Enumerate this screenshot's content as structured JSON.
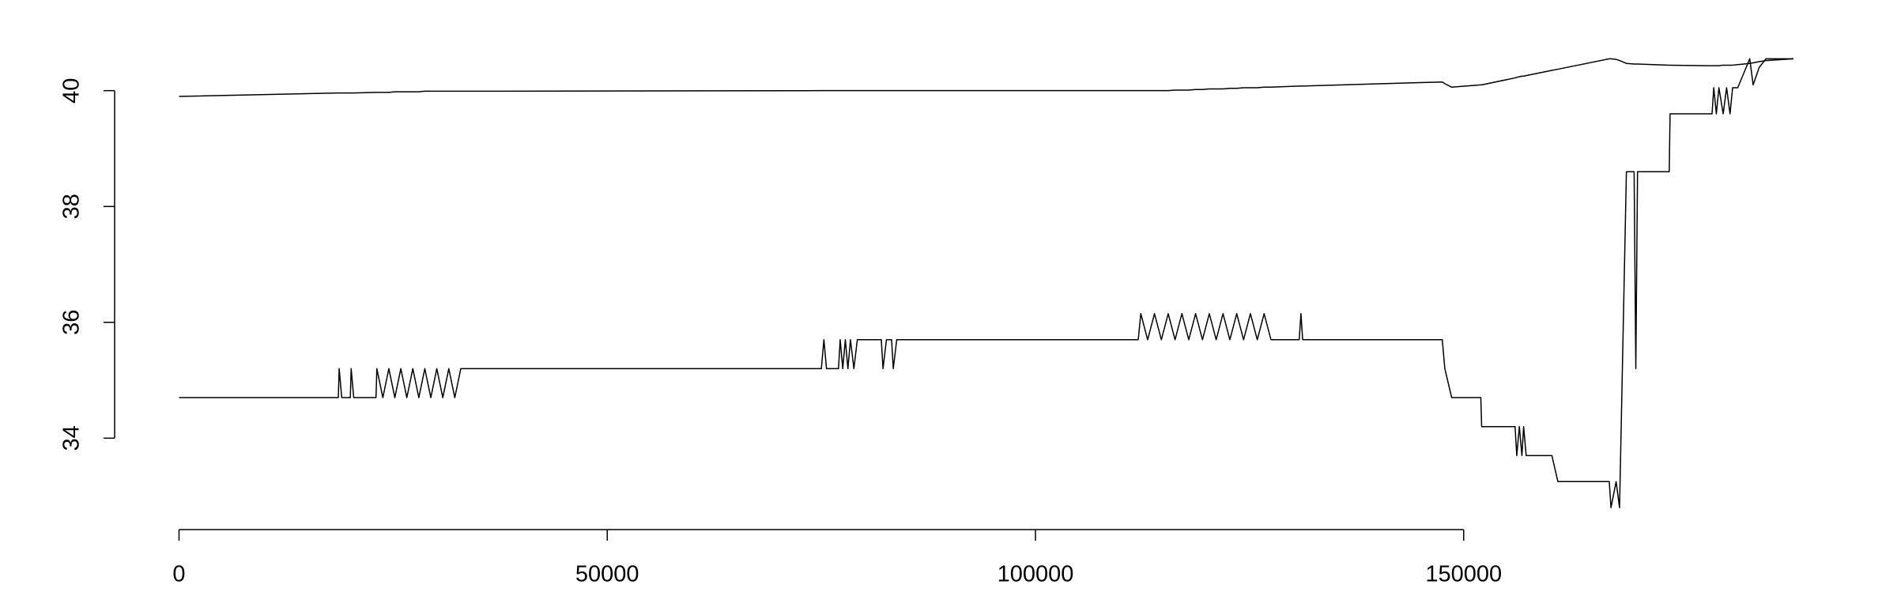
{
  "chart_data": {
    "type": "line",
    "x": [
      0,
      18600,
      18700,
      19000,
      20000,
      20100,
      20400,
      23000,
      23100,
      23800,
      24500,
      25200,
      25900,
      26600,
      27300,
      28000,
      28700,
      29400,
      30100,
      30800,
      31500,
      32200,
      32900,
      75000,
      75300,
      75600,
      77000,
      77200,
      77500,
      77800,
      78100,
      78400,
      78800,
      79200,
      82000,
      82200,
      82600,
      83200,
      83400,
      83800,
      112000,
      112300,
      113100,
      113900,
      114700,
      115500,
      116300,
      117100,
      117900,
      118700,
      119500,
      120300,
      121100,
      121900,
      122700,
      123500,
      124300,
      125100,
      125900,
      126700,
      127500,
      130800,
      131000,
      131200,
      147500,
      147800,
      148600,
      152000,
      152100,
      156000,
      156200,
      156500,
      156800,
      157000,
      157300,
      160300,
      161000,
      167000,
      167200,
      167800,
      168200,
      169000,
      169900,
      170100,
      170300,
      174000,
      174100,
      179000,
      179200,
      179500,
      179800,
      180300,
      180700,
      181100,
      181400,
      182000,
      183400,
      183800,
      184500,
      185300,
      188500
    ],
    "series": [
      {
        "color": "#000000",
        "values": [
          39.9,
          39.96,
          39.96,
          39.96,
          39.96,
          39.96,
          39.96,
          39.97,
          39.97,
          39.97,
          39.97,
          39.98,
          39.98,
          39.98,
          39.98,
          39.98,
          39.99,
          39.99,
          39.99,
          39.99,
          39.99,
          39.99,
          39.99,
          40.0,
          40.0,
          40.0,
          40.0,
          40.0,
          40.0,
          40.0,
          40.0,
          40.0,
          40.0,
          40.0,
          40.0,
          40.0,
          40.0,
          40.0,
          40.0,
          40.0,
          40.0,
          40.0,
          40.0,
          40.0,
          40.0,
          40.0,
          40.01,
          40.01,
          40.01,
          40.02,
          40.02,
          40.03,
          40.03,
          40.03,
          40.04,
          40.04,
          40.05,
          40.05,
          40.05,
          40.06,
          40.06,
          40.08,
          40.08,
          40.08,
          40.15,
          40.12,
          40.06,
          40.1,
          40.1,
          40.22,
          40.23,
          40.24,
          40.25,
          40.25,
          40.26,
          40.35,
          40.37,
          40.55,
          40.55,
          40.54,
          40.52,
          40.47,
          40.46,
          40.46,
          40.46,
          40.44,
          40.44,
          40.43,
          40.43,
          40.43,
          40.43,
          40.44,
          40.44,
          40.44,
          40.44,
          40.45,
          40.47,
          40.48,
          40.5,
          40.52,
          40.55
        ]
      },
      {
        "color": "#000000",
        "values": [
          34.7,
          34.7,
          35.2,
          34.7,
          34.7,
          35.2,
          34.7,
          34.7,
          35.2,
          34.7,
          35.2,
          34.7,
          35.2,
          34.7,
          35.2,
          34.7,
          35.2,
          34.7,
          35.2,
          34.7,
          35.2,
          34.7,
          35.2,
          35.2,
          35.7,
          35.2,
          35.2,
          35.7,
          35.2,
          35.7,
          35.2,
          35.7,
          35.2,
          35.7,
          35.7,
          35.2,
          35.7,
          35.7,
          35.2,
          35.7,
          35.7,
          36.15,
          35.7,
          36.15,
          35.7,
          36.15,
          35.7,
          36.15,
          35.7,
          36.15,
          35.7,
          36.15,
          35.7,
          36.15,
          35.7,
          36.15,
          35.7,
          36.15,
          35.7,
          36.15,
          35.7,
          35.7,
          36.15,
          35.7,
          35.7,
          35.2,
          34.7,
          34.7,
          34.2,
          34.2,
          33.7,
          34.2,
          33.7,
          34.2,
          33.7,
          33.7,
          33.25,
          33.25,
          32.8,
          33.25,
          32.8,
          38.6,
          38.6,
          35.2,
          38.6,
          38.6,
          39.6,
          39.6,
          40.05,
          39.6,
          40.05,
          39.6,
          40.05,
          39.6,
          40.05,
          40.05,
          40.55,
          40.1,
          40.4,
          40.55,
          40.55
        ]
      }
    ],
    "xlim": [
      -7520,
      195520
    ],
    "xticks": [
      0,
      50000,
      100000,
      150000
    ],
    "ylim": [
      32.49,
      40.91
    ],
    "yticks": [
      34,
      36,
      38,
      40
    ],
    "grid": false
  }
}
